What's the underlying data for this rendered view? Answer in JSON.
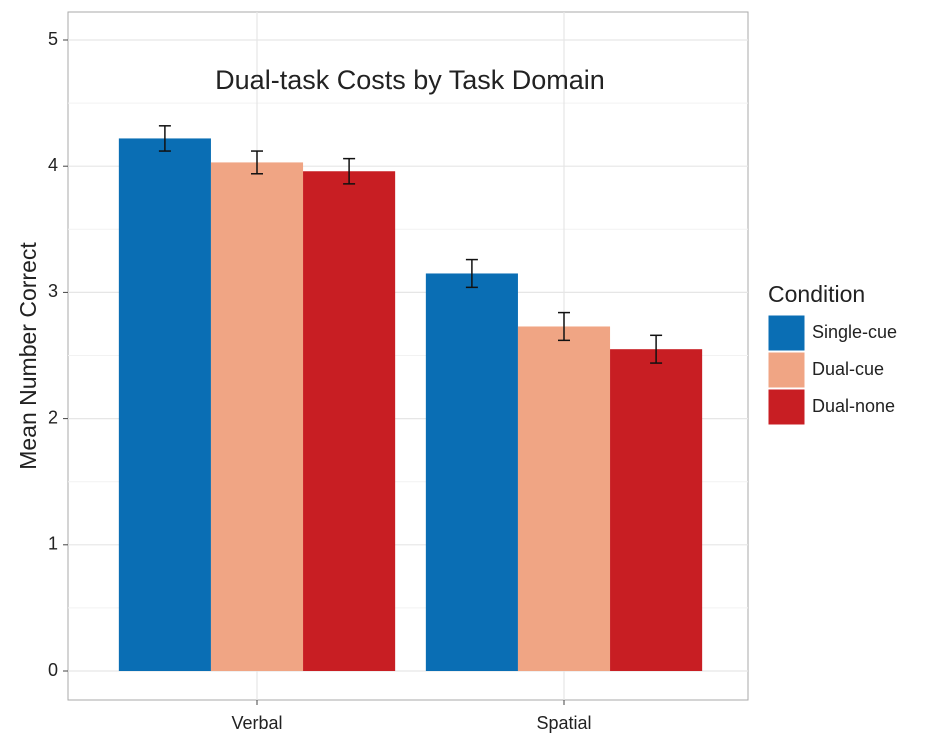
{
  "chart_data": {
    "type": "bar",
    "title": "Dual-task Costs by Task Domain",
    "y_label": "Mean Number Correct",
    "legend_title": "Condition",
    "categories": [
      "Verbal",
      "Spatial"
    ],
    "series": [
      {
        "name": "Single-cue",
        "color": "#0a6eb4",
        "values": [
          4.22,
          3.15
        ],
        "errors": [
          0.1,
          0.11
        ]
      },
      {
        "name": "Dual-cue",
        "color": "#f0a584",
        "values": [
          4.03,
          2.73
        ],
        "errors": [
          0.09,
          0.11
        ]
      },
      {
        "name": "Dual-none",
        "color": "#c81e23",
        "values": [
          3.96,
          2.55
        ],
        "errors": [
          0.1,
          0.11
        ]
      }
    ],
    "ylim": [
      0,
      5
    ],
    "yticks": [
      0,
      1,
      2,
      3,
      4,
      5
    ],
    "grid": true,
    "legend": "right"
  }
}
